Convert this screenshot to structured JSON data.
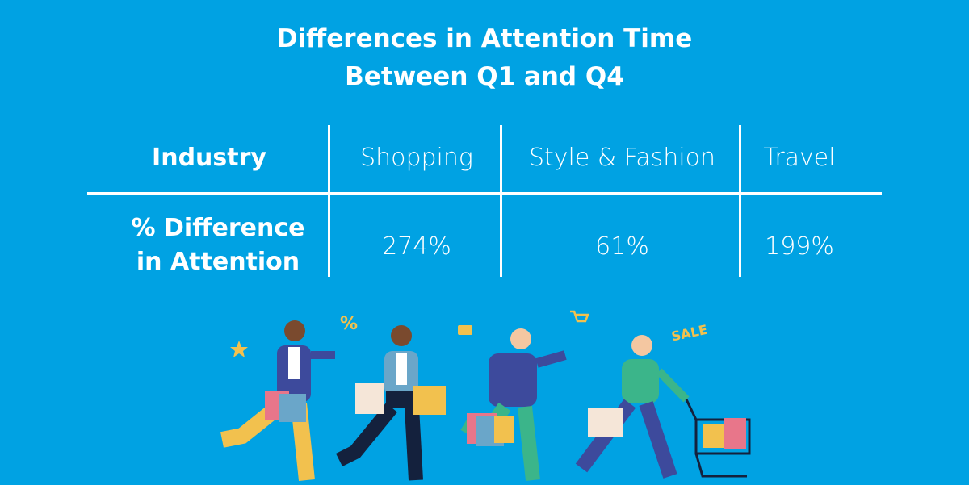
{
  "header": {
    "title_lines": [
      "Differences in Attention Time",
      "Between Q1 and Q4"
    ]
  },
  "table": {
    "columns": [
      "Industry",
      "Shopping",
      "Style & Fashion",
      "Travel"
    ],
    "rows": [
      [
        "% Difference in Attention",
        "274%",
        "61%",
        "199%"
      ]
    ]
  },
  "illustration": {
    "labels": [
      "%",
      "SALE"
    ]
  }
}
